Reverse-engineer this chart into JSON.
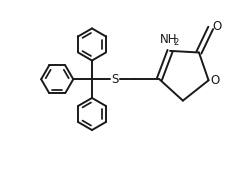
{
  "background_color": "#ffffff",
  "line_color": "#1a1a1a",
  "lw": 1.4,
  "fs": 8.5,
  "xlim": [
    -2.0,
    2.6
  ],
  "ylim": [
    -1.7,
    1.7
  ],
  "ph_r": 0.3,
  "ph_lw": 1.4
}
